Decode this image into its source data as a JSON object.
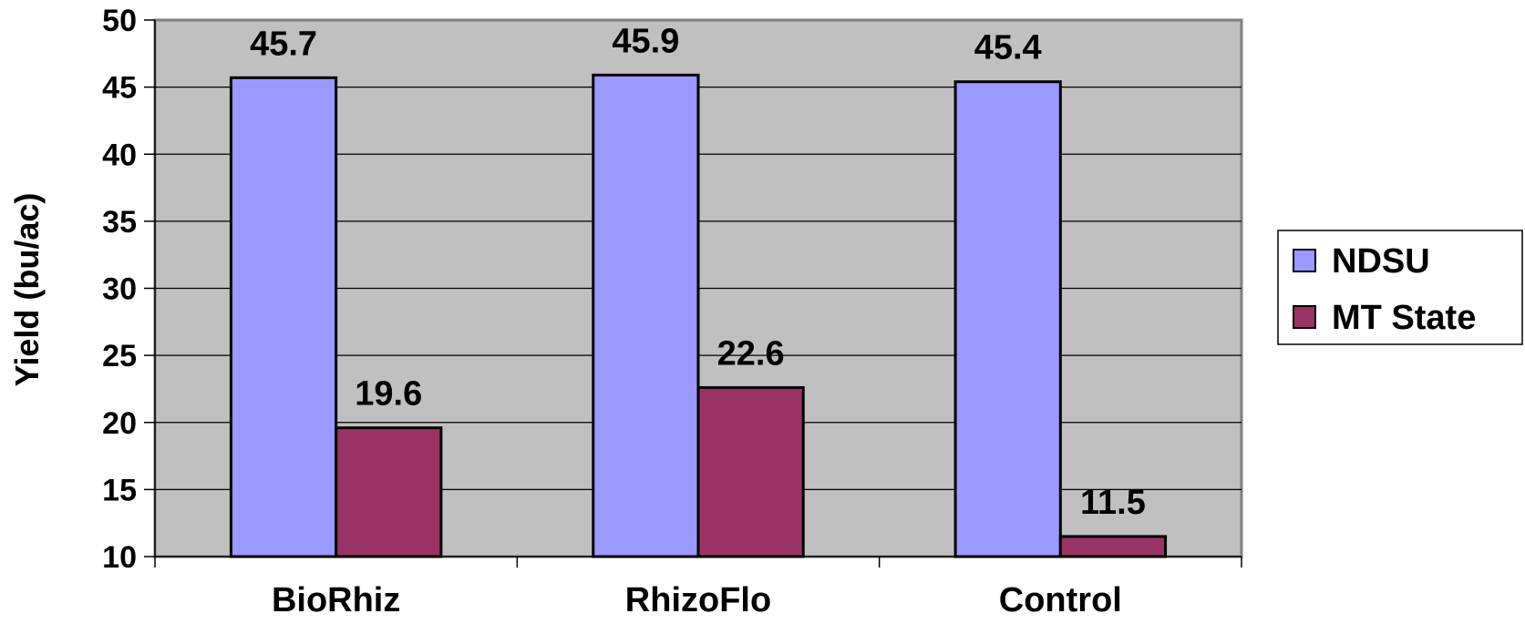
{
  "chart_data": {
    "type": "bar",
    "title": "",
    "xlabel": "",
    "ylabel": "Yield (bu/ac)",
    "ylim": [
      10,
      50
    ],
    "yticks": [
      10,
      15,
      20,
      25,
      30,
      35,
      40,
      45,
      50
    ],
    "categories": [
      "BioRhiz",
      "RhizoFlo",
      "Control"
    ],
    "series": [
      {
        "name": "NDSU",
        "values": [
          45.7,
          45.9,
          45.4
        ],
        "labels": [
          "45.7",
          "45.9",
          "45.4"
        ],
        "color": "#9999ff"
      },
      {
        "name": "MT State",
        "values": [
          19.6,
          22.6,
          11.5
        ],
        "labels": [
          "19.6",
          "22.6",
          "11.5"
        ],
        "color": "#993366"
      }
    ],
    "grid": true,
    "plot_background": "#c0c0c0",
    "legend_position": "right"
  }
}
